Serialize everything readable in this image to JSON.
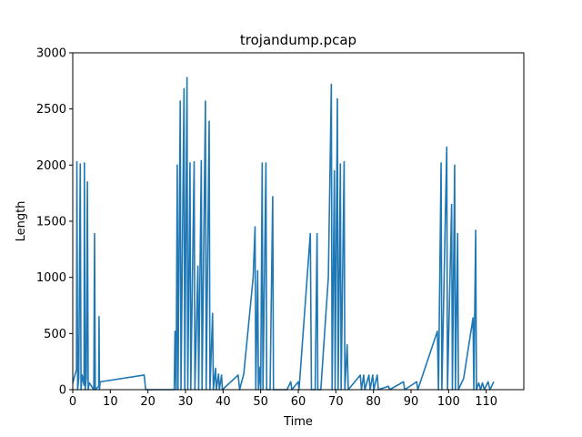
{
  "chart_data": {
    "type": "line",
    "title": "trojandump.pcap",
    "xlabel": "Time",
    "ylabel": "Length",
    "xlim": [
      0,
      120
    ],
    "ylim": [
      0,
      3000
    ],
    "x_ticks": [
      0,
      10,
      20,
      30,
      40,
      50,
      60,
      70,
      80,
      90,
      100,
      110
    ],
    "y_ticks": [
      0,
      500,
      1000,
      1500,
      2000,
      2500,
      3000
    ],
    "grid": false,
    "legend": "none",
    "series": [
      {
        "color": "#1f77b4",
        "points": [
          [
            0.0,
            60
          ],
          [
            1.0,
            180
          ],
          [
            1.1,
            2030
          ],
          [
            1.3,
            0
          ],
          [
            1.6,
            100
          ],
          [
            2.0,
            2010
          ],
          [
            2.2,
            0
          ],
          [
            2.5,
            130
          ],
          [
            3.0,
            40
          ],
          [
            3.1,
            2020
          ],
          [
            3.3,
            0
          ],
          [
            3.6,
            100
          ],
          [
            3.9,
            1850
          ],
          [
            4.1,
            0
          ],
          [
            4.4,
            60
          ],
          [
            5.6,
            0
          ],
          [
            5.8,
            1390
          ],
          [
            6.0,
            0
          ],
          [
            6.9,
            30
          ],
          [
            7.0,
            650
          ],
          [
            7.1,
            0
          ],
          [
            7.3,
            70
          ],
          [
            19.0,
            130
          ],
          [
            19.4,
            0
          ],
          [
            27.0,
            0
          ],
          [
            27.2,
            520
          ],
          [
            27.5,
            0
          ],
          [
            27.8,
            2000
          ],
          [
            28.0,
            0
          ],
          [
            28.6,
            2570
          ],
          [
            28.8,
            0
          ],
          [
            29.6,
            2680
          ],
          [
            29.8,
            0
          ],
          [
            30.4,
            2780
          ],
          [
            30.6,
            0
          ],
          [
            31.2,
            2020
          ],
          [
            31.4,
            0
          ],
          [
            32.3,
            2030
          ],
          [
            32.5,
            0
          ],
          [
            33.3,
            1100
          ],
          [
            33.5,
            0
          ],
          [
            34.2,
            2040
          ],
          [
            34.4,
            0
          ],
          [
            35.3,
            2570
          ],
          [
            35.5,
            0
          ],
          [
            36.3,
            2390
          ],
          [
            36.5,
            0
          ],
          [
            37.2,
            680
          ],
          [
            37.4,
            0
          ],
          [
            38.0,
            190
          ],
          [
            38.2,
            0
          ],
          [
            38.8,
            140
          ],
          [
            39.0,
            0
          ],
          [
            39.6,
            130
          ],
          [
            39.8,
            0
          ],
          [
            44.0,
            130
          ],
          [
            44.4,
            0
          ],
          [
            45.5,
            140
          ],
          [
            48.0,
            1000
          ],
          [
            48.5,
            1450
          ],
          [
            48.7,
            0
          ],
          [
            49.2,
            1060
          ],
          [
            49.4,
            0
          ],
          [
            49.8,
            200
          ],
          [
            50.0,
            0
          ],
          [
            50.4,
            2020
          ],
          [
            50.6,
            0
          ],
          [
            51.4,
            2020
          ],
          [
            51.6,
            0
          ],
          [
            52.5,
            0
          ],
          [
            53.2,
            1720
          ],
          [
            53.4,
            0
          ],
          [
            57.0,
            0
          ],
          [
            58.0,
            70
          ],
          [
            58.3,
            0
          ],
          [
            60.0,
            70
          ],
          [
            60.2,
            0
          ],
          [
            63.2,
            1390
          ],
          [
            63.5,
            0
          ],
          [
            64.5,
            0
          ],
          [
            65.0,
            1390
          ],
          [
            65.2,
            0
          ],
          [
            66.0,
            0
          ],
          [
            68.0,
            1000
          ],
          [
            68.8,
            2720
          ],
          [
            69.0,
            0
          ],
          [
            69.6,
            1950
          ],
          [
            69.8,
            0
          ],
          [
            70.4,
            2590
          ],
          [
            70.6,
            0
          ],
          [
            71.2,
            2010
          ],
          [
            71.4,
            0
          ],
          [
            72.2,
            2030
          ],
          [
            72.4,
            0
          ],
          [
            73.0,
            400
          ],
          [
            73.3,
            0
          ],
          [
            76.5,
            130
          ],
          [
            76.8,
            0
          ],
          [
            77.4,
            130
          ],
          [
            77.7,
            0
          ],
          [
            78.8,
            130
          ],
          [
            79.1,
            0
          ],
          [
            79.8,
            130
          ],
          [
            80.1,
            0
          ],
          [
            81.0,
            130
          ],
          [
            81.3,
            0
          ],
          [
            84.0,
            30
          ],
          [
            84.3,
            0
          ],
          [
            88.0,
            70
          ],
          [
            88.3,
            0
          ],
          [
            91.5,
            70
          ],
          [
            91.8,
            0
          ],
          [
            97.0,
            520
          ],
          [
            97.3,
            0
          ],
          [
            98.0,
            2020
          ],
          [
            98.2,
            0
          ],
          [
            99.5,
            2160
          ],
          [
            99.7,
            0
          ],
          [
            100.8,
            1650
          ],
          [
            101.0,
            0
          ],
          [
            101.6,
            2000
          ],
          [
            101.8,
            0
          ],
          [
            102.4,
            1390
          ],
          [
            102.6,
            0
          ],
          [
            104.0,
            100
          ],
          [
            106.5,
            640
          ],
          [
            106.7,
            0
          ],
          [
            107.2,
            1420
          ],
          [
            107.4,
            0
          ],
          [
            108.0,
            60
          ],
          [
            108.5,
            0
          ],
          [
            109.0,
            60
          ],
          [
            109.5,
            0
          ],
          [
            110.5,
            70
          ],
          [
            111.0,
            0
          ],
          [
            112.0,
            70
          ]
        ]
      }
    ]
  }
}
